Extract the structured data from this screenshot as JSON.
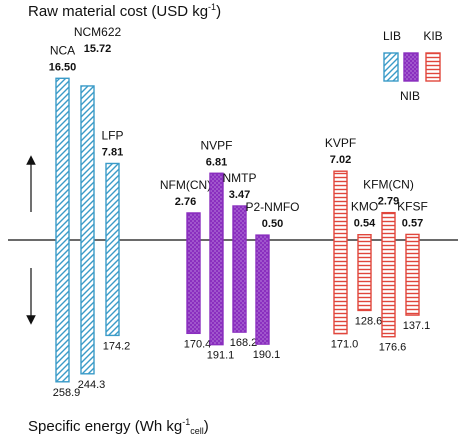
{
  "chart_data": {
    "type": "bar",
    "title": "Raw material cost (USD kg-1)",
    "ylabel_top": "Raw material cost (USD kg-1)",
    "ylabel_bottom": "Specific energy (Wh kg-1 cell)",
    "colors": {
      "LIB": "#3a9bc8",
      "NIB": "#8a2fbf",
      "KIB": "#e0463c"
    },
    "legend": {
      "placement": "top-right",
      "items": [
        {
          "name": "LIB",
          "color": "#3a9bc8",
          "pattern": "diagonal-stripes"
        },
        {
          "name": "NIB",
          "color": "#8a2fbf",
          "pattern": "dots"
        },
        {
          "name": "KIB",
          "color": "#e0463c",
          "pattern": "horizontal-stripes"
        }
      ]
    },
    "groups": [
      {
        "name": "LIB",
        "materials": [
          {
            "label": "NCA",
            "cost": "16.50",
            "energy": "258.9"
          },
          {
            "label": "NCM622",
            "cost": "15.72",
            "energy": "244.3"
          },
          {
            "label": "LFP",
            "cost": "7.81",
            "energy": "174.2"
          }
        ]
      },
      {
        "name": "NIB",
        "materials": [
          {
            "label": "NFM(CN)",
            "cost": "2.76",
            "energy": "170.4"
          },
          {
            "label": "NVPF",
            "cost": "6.81",
            "energy": "191.1"
          },
          {
            "label": "NMTP",
            "cost": "3.47",
            "energy": "168.2"
          },
          {
            "label": "P2-NMFO",
            "cost": "0.50",
            "energy": "190.1"
          }
        ]
      },
      {
        "name": "KIB",
        "materials": [
          {
            "label": "KVPF",
            "cost": "7.02",
            "energy": "171.0"
          },
          {
            "label": "KMO",
            "cost": "0.54",
            "energy": "128.6"
          },
          {
            "label": "KFM(CN)",
            "cost": "2.79",
            "energy": "176.6"
          },
          {
            "label": "KFSF",
            "cost": "0.57",
            "energy": "137.1"
          }
        ]
      }
    ]
  }
}
